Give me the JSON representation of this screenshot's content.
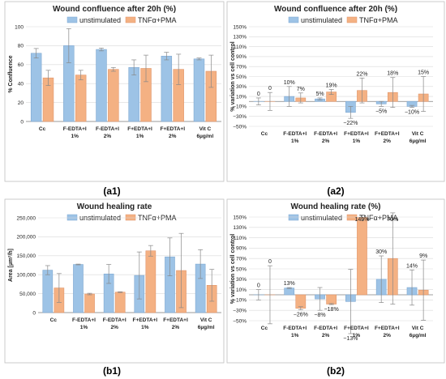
{
  "colors": {
    "unstimulated": "#9dc3e6",
    "tnf": "#f4b183",
    "unstimulated_stroke": "#7fa8d1",
    "tnf_stroke": "#e0956a",
    "error": "#888888",
    "grid": "#d9d9d9"
  },
  "panel_labels": [
    "(a1)",
    "(a2)",
    "(b1)",
    "(b2)"
  ],
  "chart_data": [
    {
      "type": "bar",
      "title": "Wound confluence after 20h (%)",
      "ylabel": "% Confluence",
      "xlabel": "",
      "ylim": [
        0,
        100
      ],
      "yticks": [
        0,
        20,
        40,
        60,
        80,
        100
      ],
      "ytick_labels": [
        "0",
        "20",
        "40",
        "60",
        "80",
        "100"
      ],
      "categories": [
        [
          "Cc"
        ],
        [
          "F-EDTA+I",
          "1%"
        ],
        [
          "F-EDTA+I",
          "2%"
        ],
        [
          "F+EDTA+I",
          "1%"
        ],
        [
          "F+EDTA+I",
          "2%"
        ],
        [
          "Vit C",
          "6µg/ml"
        ]
      ],
      "legend": [
        "unstimulated",
        "TNFα+PMA"
      ],
      "legend_position": "top",
      "grid": true,
      "series": [
        {
          "name": "unstimulated",
          "values": [
            72,
            80,
            76,
            57,
            69,
            66
          ],
          "errors": [
            5,
            18,
            1.5,
            8,
            4,
            1
          ]
        },
        {
          "name": "TNFα+PMA",
          "values": [
            46,
            49,
            55,
            56,
            55,
            53
          ],
          "errors": [
            8,
            5,
            2,
            14,
            16,
            17
          ]
        }
      ]
    },
    {
      "type": "bar",
      "title": "Wound confluence after 20h (%)",
      "ylabel": "% variation vs cell control",
      "xlabel": "",
      "ylim": [
        -50,
        150
      ],
      "yticks": [
        -50,
        -30,
        -10,
        10,
        30,
        50,
        70,
        90,
        110,
        130,
        150
      ],
      "ytick_labels": [
        "−50%",
        "−30%",
        "−10%",
        "10%",
        "30%",
        "50%",
        "70%",
        "90%",
        "110%",
        "130%",
        "150%"
      ],
      "categories": [
        [
          "Cc"
        ],
        [
          "F-EDTA+I",
          "1%"
        ],
        [
          "F-EDTA+I",
          "2%"
        ],
        [
          "F+EDTA+I",
          "1%"
        ],
        [
          "F+EDTA+I",
          "2%"
        ],
        [
          "Vit C",
          "6µg/ml"
        ]
      ],
      "legend": [
        "unstimulated",
        "TNFα+PMA"
      ],
      "legend_position": "top",
      "grid": true,
      "series": [
        {
          "name": "unstimulated",
          "values": [
            0,
            10,
            5,
            -22,
            -5,
            -10
          ],
          "errors": [
            7,
            20,
            2,
            12,
            5,
            2
          ],
          "labels": [
            "0",
            "10%",
            "5%",
            "−22%",
            "−5%",
            "−10%"
          ]
        },
        {
          "name": "TNFα+PMA",
          "values": [
            0,
            7,
            19,
            22,
            18,
            15
          ],
          "errors": [
            18,
            10,
            5,
            25,
            30,
            35
          ],
          "labels": [
            "0",
            "7%",
            "19%",
            "22%",
            "18%",
            "15%"
          ]
        }
      ]
    },
    {
      "type": "bar",
      "title": "Wound healing rate",
      "ylabel": "Area [µm²/h]",
      "xlabel": "",
      "ylim": [
        0,
        250000
      ],
      "yticks": [
        0,
        50000,
        100000,
        150000,
        200000,
        250000
      ],
      "ytick_labels": [
        "0",
        "50,000",
        "100,000",
        "150,000",
        "200,000",
        "250,000"
      ],
      "categories": [
        [
          "Cc"
        ],
        [
          "F-EDTA+I",
          "1%"
        ],
        [
          "F-EDTA+I",
          "2%"
        ],
        [
          "F+EDTA+I",
          "1%"
        ],
        [
          "F+EDTA+I",
          "2%"
        ],
        [
          "Vit C",
          "6µg/ml"
        ]
      ],
      "legend": [
        "unstimulated",
        "TNFα+PMA"
      ],
      "legend_position": "top",
      "grid": true,
      "series": [
        {
          "name": "unstimulated",
          "values": [
            112000,
            127000,
            102000,
            98000,
            147000,
            128000
          ],
          "errors": [
            12000,
            1000,
            25000,
            62000,
            50000,
            38000
          ]
        },
        {
          "name": "TNFα+PMA",
          "values": [
            65000,
            49000,
            54000,
            163000,
            111000,
            72000
          ],
          "errors": [
            38000,
            2000,
            1000,
            14000,
            98000,
            42000
          ]
        }
      ]
    },
    {
      "type": "bar",
      "title": "Wound healing rate (%)",
      "ylabel": "% variation vs cell control",
      "xlabel": "",
      "ylim": [
        -50,
        150
      ],
      "yticks": [
        -50,
        -30,
        -10,
        10,
        30,
        50,
        70,
        90,
        110,
        130,
        150
      ],
      "ytick_labels": [
        "−50%",
        "−30%",
        "−10%",
        "10%",
        "30%",
        "50%",
        "70%",
        "90%",
        "110%",
        "130%",
        "150%"
      ],
      "categories": [
        [
          "Cc"
        ],
        [
          "F-EDTA+I",
          "1%"
        ],
        [
          "F-EDTA+I",
          "2%"
        ],
        [
          "F+EDTA+I",
          "1%"
        ],
        [
          "F+EDTA+I",
          "2%"
        ],
        [
          "Vit C",
          "6µg/ml"
        ]
      ],
      "legend": [
        "unstimulated",
        "TNFα+PMA"
      ],
      "legend_position": "top",
      "grid": true,
      "series": [
        {
          "name": "unstimulated",
          "values": [
            0,
            13,
            -8,
            -13,
            30,
            14
          ],
          "errors": [
            10,
            1,
            22,
            62,
            45,
            34
          ],
          "labels": [
            "0",
            "13%",
            "−8%",
            "−13%",
            "30%",
            "14%"
          ]
        },
        {
          "name": "TNFα+PMA",
          "values": [
            0,
            -26,
            -18,
            149,
            70,
            9
          ],
          "errors": [
            56,
            3,
            1,
            5,
            88,
            58
          ],
          "labels": [
            "0",
            "−26%",
            "−18%",
            "149%",
            "70%",
            "9%"
          ]
        }
      ]
    }
  ]
}
